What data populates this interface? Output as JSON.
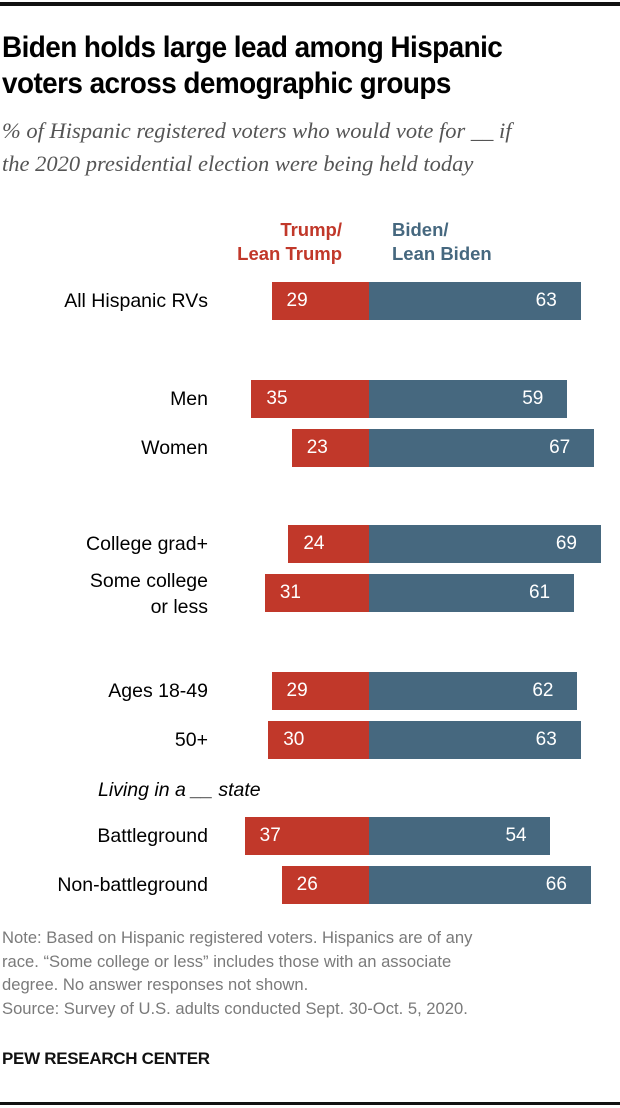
{
  "title": "Biden holds large lead among Hispanic voters across demographic groups",
  "title_lines": [
    "Biden holds large lead among Hispanic",
    "voters across demographic groups"
  ],
  "subtitle_lines": [
    "% of Hispanic registered voters who would vote for __ if",
    "the 2020 presidential election were being held today"
  ],
  "legend": {
    "trump_lines": [
      "Trump/",
      "Lean Trump"
    ],
    "biden_lines": [
      "Biden/",
      "Lean Biden"
    ]
  },
  "colors": {
    "trump": "#c1382a",
    "biden": "#46687f"
  },
  "section_label": "Living in a __ state",
  "notes": [
    "Note: Based on Hispanic registered voters. Hispanics are of any",
    "race. “Some college or less” includes those with an associate",
    "degree. No answer responses not shown.",
    "Source: Survey of U.S. adults conducted Sept. 30-Oct. 5, 2020."
  ],
  "brand": "PEW RESEARCH CENTER",
  "chart_data": {
    "type": "bar",
    "orientation": "horizontal diverging stacked",
    "title": "Biden holds large lead among Hispanic voters across demographic groups",
    "subtitle": "% of Hispanic registered voters who would vote for __ if the 2020 presidential election were being held today",
    "xlabel": "",
    "ylabel": "",
    "legend_position": "top",
    "grid": false,
    "categories": [
      "All Hispanic RVs",
      "Men",
      "Women",
      "College grad+",
      "Some college or less",
      "Ages 18-49",
      "50+",
      "Battleground",
      "Non-battleground"
    ],
    "category_label_lines": [
      [
        "All Hispanic RVs"
      ],
      [
        "Men"
      ],
      [
        "Women"
      ],
      [
        "College grad+"
      ],
      [
        "Some college",
        "or less"
      ],
      [
        "Ages 18-49"
      ],
      [
        "50+"
      ],
      [
        "Battleground"
      ],
      [
        "Non-battleground"
      ]
    ],
    "series": [
      {
        "name": "Trump/Lean Trump",
        "values": [
          29,
          35,
          23,
          24,
          31,
          29,
          30,
          37,
          26
        ]
      },
      {
        "name": "Biden/Lean Biden",
        "values": [
          63,
          59,
          67,
          69,
          61,
          62,
          63,
          54,
          66
        ]
      }
    ],
    "annotations": [
      "Living in a __ state"
    ],
    "value_range": [
      0,
      100
    ]
  }
}
